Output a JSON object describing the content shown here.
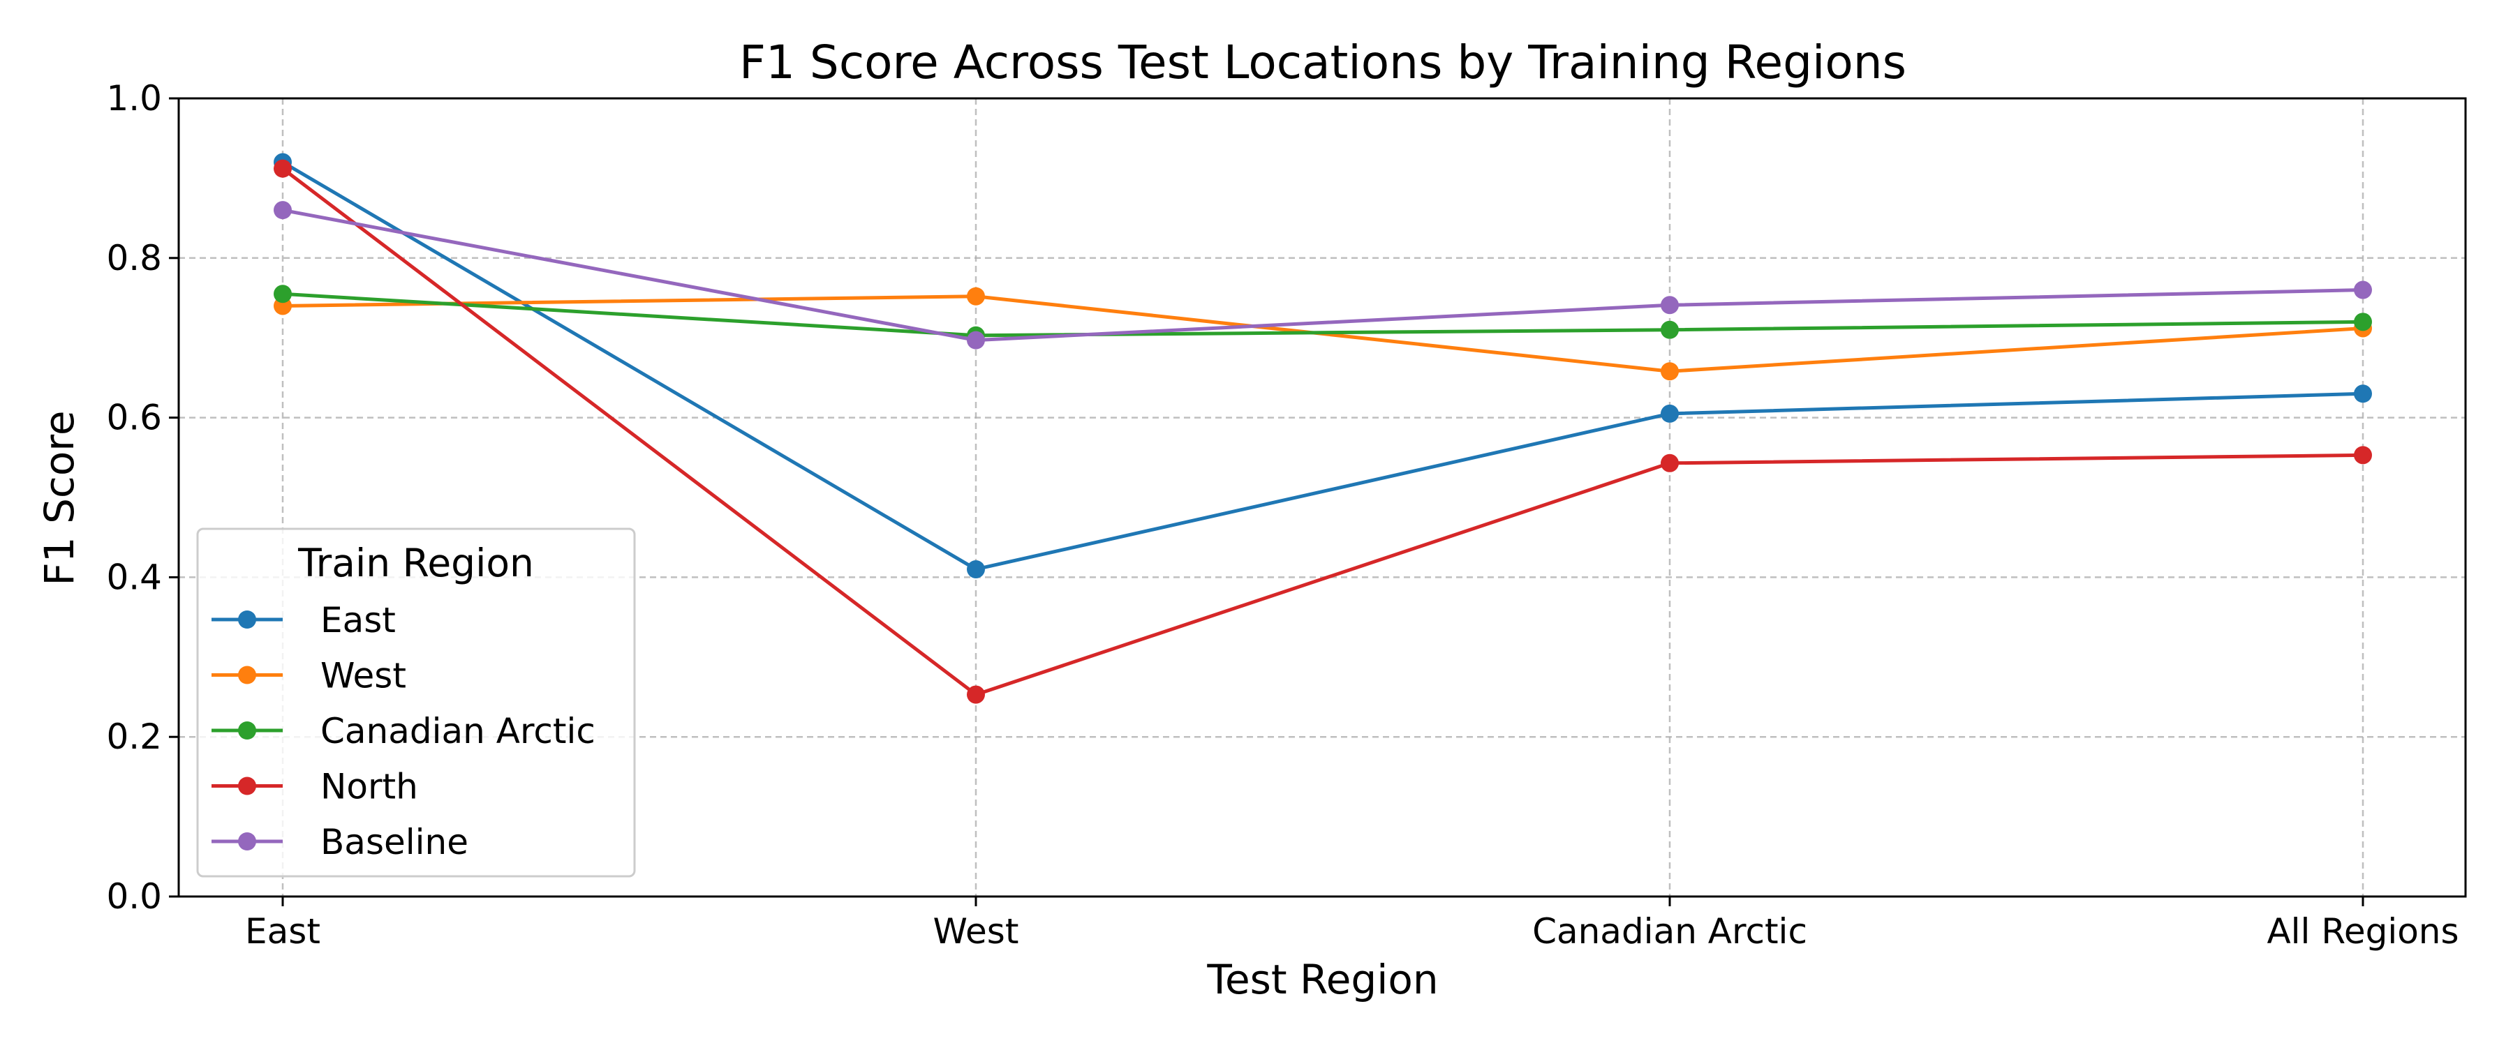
{
  "chart_data": {
    "type": "line",
    "title": "F1 Score Across Test Locations by Training Regions",
    "xlabel": "Test Region",
    "ylabel": "F1 Score",
    "categories": [
      "East",
      "West",
      "Canadian Arctic",
      "All Regions"
    ],
    "ylim": [
      0.0,
      1.0
    ],
    "yticks": [
      "0.0",
      "0.2",
      "0.4",
      "0.6",
      "0.8",
      "1.0"
    ],
    "grid": true,
    "legend": {
      "title": "Train Region",
      "placement": "lower-left"
    },
    "series": [
      {
        "name": "East",
        "color": "#1f77b4",
        "values": [
          0.92,
          0.41,
          0.605,
          0.63
        ]
      },
      {
        "name": "West",
        "color": "#ff7f0e",
        "values": [
          0.74,
          0.752,
          0.658,
          0.712
        ]
      },
      {
        "name": "Canadian Arctic",
        "color": "#2ca02c",
        "values": [
          0.755,
          0.703,
          0.71,
          0.72
        ]
      },
      {
        "name": "North",
        "color": "#d62728",
        "values": [
          0.912,
          0.253,
          0.543,
          0.553
        ]
      },
      {
        "name": "Baseline",
        "color": "#9467bd",
        "values": [
          0.86,
          0.697,
          0.741,
          0.76
        ]
      }
    ]
  }
}
